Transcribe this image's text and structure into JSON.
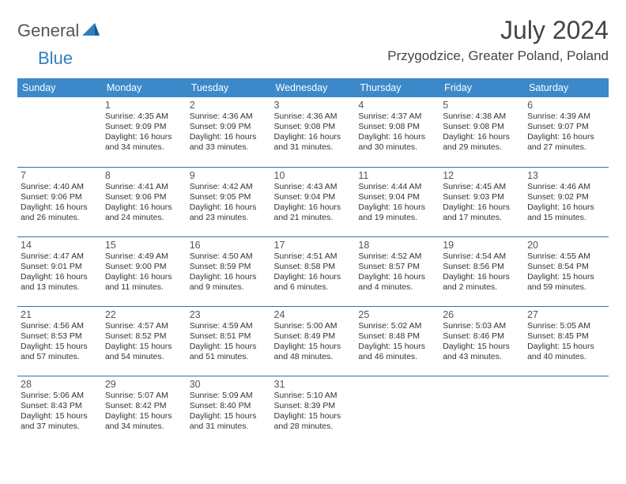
{
  "brand": {
    "part1": "General",
    "part2": "Blue"
  },
  "title": "July 2024",
  "location": "Przygodzice, Greater Poland, Poland",
  "colors": {
    "header_bg": "#3b89c9",
    "header_text": "#ffffff",
    "row_divider": "#3b6f9b",
    "brand_gray": "#555555",
    "brand_blue": "#2f7fbf",
    "body_text": "#333333"
  },
  "day_headers": [
    "Sunday",
    "Monday",
    "Tuesday",
    "Wednesday",
    "Thursday",
    "Friday",
    "Saturday"
  ],
  "weeks": [
    [
      null,
      {
        "n": "1",
        "sr": "4:35 AM",
        "ss": "9:09 PM",
        "dh": "16",
        "dm": "34"
      },
      {
        "n": "2",
        "sr": "4:36 AM",
        "ss": "9:09 PM",
        "dh": "16",
        "dm": "33"
      },
      {
        "n": "3",
        "sr": "4:36 AM",
        "ss": "9:08 PM",
        "dh": "16",
        "dm": "31"
      },
      {
        "n": "4",
        "sr": "4:37 AM",
        "ss": "9:08 PM",
        "dh": "16",
        "dm": "30"
      },
      {
        "n": "5",
        "sr": "4:38 AM",
        "ss": "9:08 PM",
        "dh": "16",
        "dm": "29"
      },
      {
        "n": "6",
        "sr": "4:39 AM",
        "ss": "9:07 PM",
        "dh": "16",
        "dm": "27"
      }
    ],
    [
      {
        "n": "7",
        "sr": "4:40 AM",
        "ss": "9:06 PM",
        "dh": "16",
        "dm": "26"
      },
      {
        "n": "8",
        "sr": "4:41 AM",
        "ss": "9:06 PM",
        "dh": "16",
        "dm": "24"
      },
      {
        "n": "9",
        "sr": "4:42 AM",
        "ss": "9:05 PM",
        "dh": "16",
        "dm": "23"
      },
      {
        "n": "10",
        "sr": "4:43 AM",
        "ss": "9:04 PM",
        "dh": "16",
        "dm": "21"
      },
      {
        "n": "11",
        "sr": "4:44 AM",
        "ss": "9:04 PM",
        "dh": "16",
        "dm": "19"
      },
      {
        "n": "12",
        "sr": "4:45 AM",
        "ss": "9:03 PM",
        "dh": "16",
        "dm": "17"
      },
      {
        "n": "13",
        "sr": "4:46 AM",
        "ss": "9:02 PM",
        "dh": "16",
        "dm": "15"
      }
    ],
    [
      {
        "n": "14",
        "sr": "4:47 AM",
        "ss": "9:01 PM",
        "dh": "16",
        "dm": "13"
      },
      {
        "n": "15",
        "sr": "4:49 AM",
        "ss": "9:00 PM",
        "dh": "16",
        "dm": "11"
      },
      {
        "n": "16",
        "sr": "4:50 AM",
        "ss": "8:59 PM",
        "dh": "16",
        "dm": "9"
      },
      {
        "n": "17",
        "sr": "4:51 AM",
        "ss": "8:58 PM",
        "dh": "16",
        "dm": "6"
      },
      {
        "n": "18",
        "sr": "4:52 AM",
        "ss": "8:57 PM",
        "dh": "16",
        "dm": "4"
      },
      {
        "n": "19",
        "sr": "4:54 AM",
        "ss": "8:56 PM",
        "dh": "16",
        "dm": "2"
      },
      {
        "n": "20",
        "sr": "4:55 AM",
        "ss": "8:54 PM",
        "dh": "15",
        "dm": "59"
      }
    ],
    [
      {
        "n": "21",
        "sr": "4:56 AM",
        "ss": "8:53 PM",
        "dh": "15",
        "dm": "57"
      },
      {
        "n": "22",
        "sr": "4:57 AM",
        "ss": "8:52 PM",
        "dh": "15",
        "dm": "54"
      },
      {
        "n": "23",
        "sr": "4:59 AM",
        "ss": "8:51 PM",
        "dh": "15",
        "dm": "51"
      },
      {
        "n": "24",
        "sr": "5:00 AM",
        "ss": "8:49 PM",
        "dh": "15",
        "dm": "48"
      },
      {
        "n": "25",
        "sr": "5:02 AM",
        "ss": "8:48 PM",
        "dh": "15",
        "dm": "46"
      },
      {
        "n": "26",
        "sr": "5:03 AM",
        "ss": "8:46 PM",
        "dh": "15",
        "dm": "43"
      },
      {
        "n": "27",
        "sr": "5:05 AM",
        "ss": "8:45 PM",
        "dh": "15",
        "dm": "40"
      }
    ],
    [
      {
        "n": "28",
        "sr": "5:06 AM",
        "ss": "8:43 PM",
        "dh": "15",
        "dm": "37"
      },
      {
        "n": "29",
        "sr": "5:07 AM",
        "ss": "8:42 PM",
        "dh": "15",
        "dm": "34"
      },
      {
        "n": "30",
        "sr": "5:09 AM",
        "ss": "8:40 PM",
        "dh": "15",
        "dm": "31"
      },
      {
        "n": "31",
        "sr": "5:10 AM",
        "ss": "8:39 PM",
        "dh": "15",
        "dm": "28"
      },
      null,
      null,
      null
    ]
  ],
  "labels": {
    "sunrise_prefix": "Sunrise: ",
    "sunset_prefix": "Sunset: ",
    "daylight_prefix": "Daylight: ",
    "hours_word": " hours",
    "and_word": "and ",
    "minutes_word": " minutes."
  }
}
